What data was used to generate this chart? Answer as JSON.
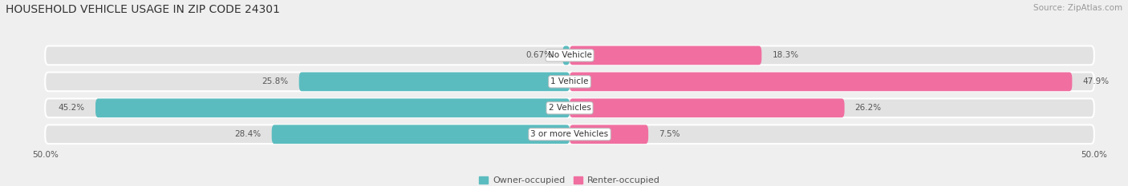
{
  "title": "HOUSEHOLD VEHICLE USAGE IN ZIP CODE 24301",
  "source": "Source: ZipAtlas.com",
  "categories": [
    "No Vehicle",
    "1 Vehicle",
    "2 Vehicles",
    "3 or more Vehicles"
  ],
  "owner_values": [
    0.67,
    25.8,
    45.2,
    28.4
  ],
  "renter_values": [
    18.3,
    47.9,
    26.2,
    7.5
  ],
  "owner_color": "#5bbcbf",
  "renter_color": "#f06fa0",
  "owner_label": "Owner-occupied",
  "renter_label": "Renter-occupied",
  "label_color": "#555555",
  "axis_min": -50.0,
  "axis_max": 50.0,
  "axis_tick_labels": [
    "50.0%",
    "50.0%"
  ],
  "background_color": "#efefef",
  "bar_bg_color": "#e2e2e2",
  "title_fontsize": 10,
  "source_fontsize": 7.5,
  "value_fontsize": 7.5,
  "category_fontsize": 7.5,
  "tick_fontsize": 7.5,
  "legend_fontsize": 8
}
